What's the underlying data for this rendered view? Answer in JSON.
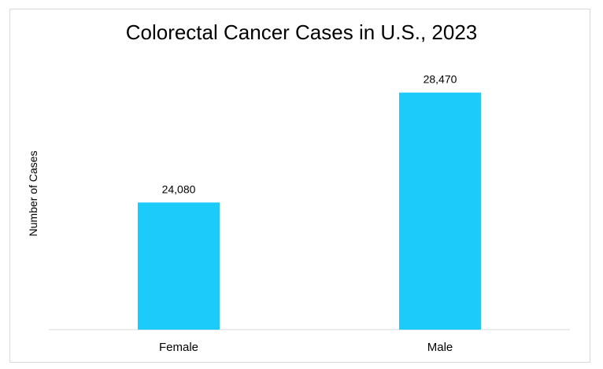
{
  "chart_data": {
    "type": "bar",
    "title": "Colorectal Cancer Cases in U.S., 2023",
    "xlabel": "",
    "ylabel": "Number of Cases",
    "categories": [
      "Female",
      "Male"
    ],
    "values": [
      24080,
      28470
    ],
    "value_labels": [
      "24,080",
      "28,470"
    ],
    "ylim": [
      19000,
      30000
    ],
    "grid": false,
    "legend": "none",
    "bar_color": "#1DCBFB"
  }
}
